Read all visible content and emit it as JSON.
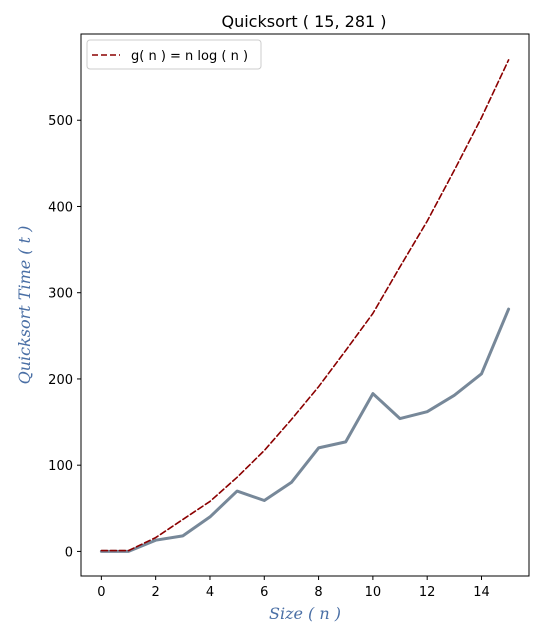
{
  "chart_data": {
    "type": "line",
    "title": "Quicksort ( 15, 281 )",
    "xlabel": "Size ( n )",
    "ylabel": "Quicksort Time ( t )",
    "xlim": [
      -0.75,
      15.75
    ],
    "ylim": [
      -28.5,
      600
    ],
    "xticks": [
      0,
      2,
      4,
      6,
      8,
      10,
      12,
      14
    ],
    "yticks": [
      0,
      100,
      200,
      300,
      400,
      500
    ],
    "grid": false,
    "legend_position": "top-left",
    "series": [
      {
        "name": "Quicksort time",
        "in_legend": false,
        "color": "#778899",
        "style": "solid",
        "x": [
          0,
          1,
          2,
          3,
          4,
          5,
          6,
          7,
          8,
          9,
          10,
          11,
          12,
          13,
          14,
          15
        ],
        "y": [
          0,
          0,
          13,
          18,
          40,
          70,
          59,
          80,
          120,
          127,
          183,
          154,
          162,
          181,
          206,
          281
        ]
      },
      {
        "name": "g( n ) = n log ( n )",
        "in_legend": true,
        "color": "#8b0000",
        "style": "dashed",
        "x": [
          0,
          1,
          2,
          3,
          4,
          5,
          6,
          7,
          8,
          9,
          10,
          11,
          12,
          13,
          14,
          15
        ],
        "y": [
          1,
          1,
          16,
          37,
          58,
          86,
          117,
          153,
          191,
          233,
          276,
          330,
          383,
          442,
          503,
          570
        ]
      }
    ]
  }
}
